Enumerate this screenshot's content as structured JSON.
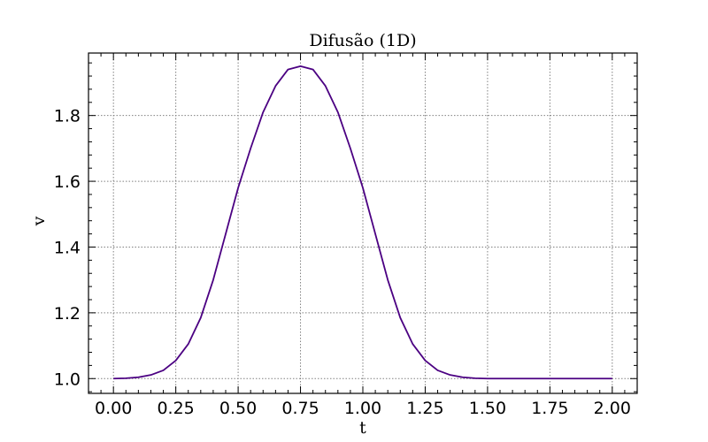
{
  "chart_data": {
    "type": "line",
    "title": "Difusão (1D)",
    "xlabel": "t",
    "ylabel": "v",
    "xlim": [
      -0.1,
      2.1
    ],
    "ylim": [
      0.955,
      1.99
    ],
    "grid": true,
    "x_ticks": [
      "0.00",
      "0.25",
      "0.50",
      "0.75",
      "1.00",
      "1.25",
      "1.50",
      "1.75",
      "2.00"
    ],
    "y_ticks": [
      "1.0",
      "1.2",
      "1.4",
      "1.6",
      "1.8"
    ],
    "x_tick_values": [
      0,
      0.25,
      0.5,
      0.75,
      1.0,
      1.25,
      1.5,
      1.75,
      2.0
    ],
    "y_tick_values": [
      1.0,
      1.2,
      1.4,
      1.6,
      1.8
    ],
    "line_color": "#4b0082",
    "series": [
      {
        "x": [
          0,
          0.05,
          0.1,
          0.15,
          0.2,
          0.25,
          0.3,
          0.35,
          0.4,
          0.45,
          0.5,
          0.55,
          0.6,
          0.65,
          0.7,
          0.75,
          0.8,
          0.85,
          0.9,
          0.95,
          1.0,
          1.05,
          1.1,
          1.15,
          1.2,
          1.25,
          1.3,
          1.35,
          1.4,
          1.45,
          1.5,
          1.55,
          1.6,
          1.65,
          1.7,
          1.75,
          1.8,
          1.85,
          1.9,
          1.95,
          2.0
        ],
        "values": [
          1.0,
          1.001,
          1.004,
          1.011,
          1.025,
          1.055,
          1.105,
          1.185,
          1.3,
          1.44,
          1.58,
          1.7,
          1.81,
          1.89,
          1.94,
          1.95,
          1.94,
          1.89,
          1.81,
          1.7,
          1.58,
          1.44,
          1.3,
          1.185,
          1.105,
          1.055,
          1.025,
          1.011,
          1.004,
          1.001,
          1.0,
          1.0,
          1.0,
          1.0,
          1.0,
          1.0,
          1.0,
          1.0,
          1.0,
          1.0,
          1.0
        ]
      }
    ]
  }
}
